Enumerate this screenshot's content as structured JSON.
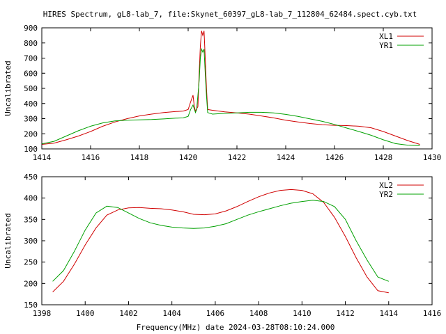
{
  "title": "HIRES Spectrum, gL8-lab_7, file:Skynet_60397_gL8-lab_7_112804_62484.spect.cyb.txt",
  "footer_label": "Frequency(MHz) date 2024-03-28T08:10:24.000",
  "colors": {
    "XL": "#d00000",
    "YR": "#00a000",
    "axis": "#000000",
    "background": "#ffffff"
  },
  "chart_data": [
    {
      "type": "line",
      "title": "",
      "xlabel": "",
      "ylabel": "Uncalibrated",
      "xlim": [
        1414,
        1430
      ],
      "ylim": [
        100,
        900
      ],
      "xticks": [
        1414,
        1416,
        1418,
        1420,
        1422,
        1424,
        1426,
        1428,
        1430
      ],
      "yticks": [
        100,
        200,
        300,
        400,
        500,
        600,
        700,
        800,
        900
      ],
      "grid": false,
      "legend_position": "top-right",
      "series": [
        {
          "name": "XL1",
          "color": "#d00000",
          "points": [
            [
              1414.0,
              130
            ],
            [
              1414.5,
              138
            ],
            [
              1415.0,
              160
            ],
            [
              1415.5,
              185
            ],
            [
              1416.0,
              215
            ],
            [
              1416.5,
              250
            ],
            [
              1417.0,
              278
            ],
            [
              1417.5,
              300
            ],
            [
              1418.0,
              318
            ],
            [
              1418.5,
              330
            ],
            [
              1419.0,
              340
            ],
            [
              1419.5,
              347
            ],
            [
              1419.8,
              350
            ],
            [
              1420.0,
              360
            ],
            [
              1420.1,
              410
            ],
            [
              1420.2,
              455
            ],
            [
              1420.25,
              380
            ],
            [
              1420.3,
              350
            ],
            [
              1420.4,
              380
            ],
            [
              1420.45,
              600
            ],
            [
              1420.5,
              780
            ],
            [
              1420.55,
              880
            ],
            [
              1420.6,
              850
            ],
            [
              1420.65,
              880
            ],
            [
              1420.7,
              700
            ],
            [
              1420.75,
              500
            ],
            [
              1420.8,
              360
            ],
            [
              1421.0,
              355
            ],
            [
              1421.5,
              345
            ],
            [
              1422.0,
              338
            ],
            [
              1422.5,
              330
            ],
            [
              1423.0,
              318
            ],
            [
              1423.5,
              305
            ],
            [
              1424.0,
              290
            ],
            [
              1424.5,
              278
            ],
            [
              1425.0,
              268
            ],
            [
              1425.5,
              260
            ],
            [
              1426.0,
              256
            ],
            [
              1426.5,
              254
            ],
            [
              1427.0,
              250
            ],
            [
              1427.5,
              240
            ],
            [
              1428.0,
              215
            ],
            [
              1428.5,
              185
            ],
            [
              1429.0,
              155
            ],
            [
              1429.5,
              130
            ]
          ]
        },
        {
          "name": "YR1",
          "color": "#00a000",
          "points": [
            [
              1414.0,
              133
            ],
            [
              1414.5,
              150
            ],
            [
              1415.0,
              185
            ],
            [
              1415.5,
              220
            ],
            [
              1416.0,
              250
            ],
            [
              1416.5,
              272
            ],
            [
              1417.0,
              285
            ],
            [
              1417.5,
              290
            ],
            [
              1418.0,
              292
            ],
            [
              1418.5,
              294
            ],
            [
              1419.0,
              298
            ],
            [
              1419.5,
              303
            ],
            [
              1419.8,
              305
            ],
            [
              1420.0,
              315
            ],
            [
              1420.1,
              360
            ],
            [
              1420.2,
              390
            ],
            [
              1420.3,
              340
            ],
            [
              1420.35,
              360
            ],
            [
              1420.45,
              550
            ],
            [
              1420.5,
              700
            ],
            [
              1420.55,
              760
            ],
            [
              1420.6,
              740
            ],
            [
              1420.65,
              760
            ],
            [
              1420.7,
              600
            ],
            [
              1420.75,
              450
            ],
            [
              1420.8,
              340
            ],
            [
              1421.0,
              330
            ],
            [
              1421.5,
              335
            ],
            [
              1422.0,
              338
            ],
            [
              1422.5,
              342
            ],
            [
              1423.0,
              342
            ],
            [
              1423.5,
              338
            ],
            [
              1424.0,
              328
            ],
            [
              1424.5,
              315
            ],
            [
              1425.0,
              298
            ],
            [
              1425.5,
              282
            ],
            [
              1426.0,
              262
            ],
            [
              1426.5,
              238
            ],
            [
              1427.0,
              215
            ],
            [
              1427.5,
              190
            ],
            [
              1428.0,
              160
            ],
            [
              1428.5,
              135
            ],
            [
              1429.0,
              125
            ],
            [
              1429.5,
              122
            ]
          ]
        }
      ]
    },
    {
      "type": "line",
      "title": "",
      "xlabel": "",
      "ylabel": "Uncalibrated",
      "xlim": [
        1398,
        1416
      ],
      "ylim": [
        150,
        450
      ],
      "xticks": [
        1398,
        1400,
        1402,
        1404,
        1406,
        1408,
        1410,
        1412,
        1414,
        1416
      ],
      "yticks": [
        150,
        200,
        250,
        300,
        350,
        400,
        450
      ],
      "grid": false,
      "legend_position": "top-right",
      "series": [
        {
          "name": "XL2",
          "color": "#d00000",
          "points": [
            [
              1398.5,
              180
            ],
            [
              1399.0,
              205
            ],
            [
              1399.5,
              245
            ],
            [
              1400.0,
              290
            ],
            [
              1400.5,
              330
            ],
            [
              1401.0,
              360
            ],
            [
              1401.5,
              372
            ],
            [
              1402.0,
              377
            ],
            [
              1402.5,
              378
            ],
            [
              1403.0,
              376
            ],
            [
              1403.5,
              375
            ],
            [
              1404.0,
              372
            ],
            [
              1404.5,
              368
            ],
            [
              1405.0,
              362
            ],
            [
              1405.5,
              361
            ],
            [
              1406.0,
              363
            ],
            [
              1406.5,
              370
            ],
            [
              1407.0,
              380
            ],
            [
              1407.5,
              392
            ],
            [
              1408.0,
              403
            ],
            [
              1408.5,
              412
            ],
            [
              1409.0,
              418
            ],
            [
              1409.5,
              420
            ],
            [
              1410.0,
              418
            ],
            [
              1410.5,
              410
            ],
            [
              1411.0,
              390
            ],
            [
              1411.5,
              355
            ],
            [
              1412.0,
              310
            ],
            [
              1412.5,
              260
            ],
            [
              1413.0,
              215
            ],
            [
              1413.5,
              183
            ],
            [
              1414.0,
              178
            ]
          ]
        },
        {
          "name": "YR2",
          "color": "#00a000",
          "points": [
            [
              1398.5,
              205
            ],
            [
              1399.0,
              230
            ],
            [
              1399.5,
              275
            ],
            [
              1400.0,
              325
            ],
            [
              1400.5,
              365
            ],
            [
              1401.0,
              381
            ],
            [
              1401.5,
              378
            ],
            [
              1402.0,
              365
            ],
            [
              1402.5,
              352
            ],
            [
              1403.0,
              342
            ],
            [
              1403.5,
              336
            ],
            [
              1404.0,
              332
            ],
            [
              1404.5,
              330
            ],
            [
              1405.0,
              329
            ],
            [
              1405.5,
              330
            ],
            [
              1406.0,
              334
            ],
            [
              1406.5,
              340
            ],
            [
              1407.0,
              350
            ],
            [
              1407.5,
              360
            ],
            [
              1408.0,
              368
            ],
            [
              1408.5,
              375
            ],
            [
              1409.0,
              382
            ],
            [
              1409.5,
              388
            ],
            [
              1410.0,
              392
            ],
            [
              1410.5,
              395
            ],
            [
              1411.0,
              392
            ],
            [
              1411.5,
              380
            ],
            [
              1412.0,
              350
            ],
            [
              1412.5,
              300
            ],
            [
              1413.0,
              255
            ],
            [
              1413.5,
              215
            ],
            [
              1414.0,
              205
            ]
          ]
        }
      ]
    }
  ]
}
